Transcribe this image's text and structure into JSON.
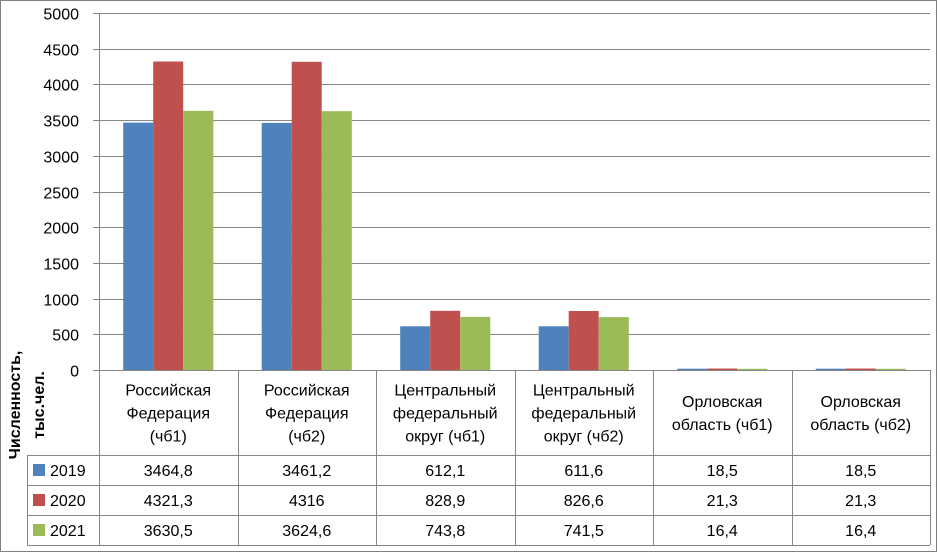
{
  "chart_data": {
    "type": "bar",
    "ylabel": "Численность, тыс.чел.",
    "ylim": [
      0,
      5000
    ],
    "yticks": [
      "0",
      "500",
      "1000",
      "1500",
      "2000",
      "2500",
      "3000",
      "3500",
      "4000",
      "4500",
      "5000"
    ],
    "grid": true,
    "legend": "data-table-left",
    "categories": [
      [
        "Российская",
        "Федерация",
        "(чб1)"
      ],
      [
        "Российская",
        "Федерация",
        "(чб2)"
      ],
      [
        "Центральный",
        "федеральный",
        "округ (чб1)"
      ],
      [
        "Центральный",
        "федеральный",
        "округ (чб2)"
      ],
      [
        "Орловская",
        "область (чб1)"
      ],
      [
        "Орловская",
        "область (чб2)"
      ]
    ],
    "series": [
      {
        "name": "2019",
        "color": "#4f81bd",
        "values": [
          3464.8,
          3461.2,
          612.1,
          611.6,
          18.5,
          18.5
        ],
        "labels": [
          "3464,8",
          "3461,2",
          "612,1",
          "611,6",
          "18,5",
          "18,5"
        ]
      },
      {
        "name": "2020",
        "color": "#c0504d",
        "values": [
          4321.3,
          4316,
          828.9,
          826.6,
          21.3,
          21.3
        ],
        "labels": [
          "4321,3",
          "4316",
          "828,9",
          "826,6",
          "21,3",
          "21,3"
        ]
      },
      {
        "name": "2021",
        "color": "#9bbb59",
        "values": [
          3630.5,
          3624.6,
          743.8,
          741.5,
          16.4,
          16.4
        ],
        "labels": [
          "3630,5",
          "3624,6",
          "743,8",
          "741,5",
          "16,4",
          "16,4"
        ]
      }
    ]
  }
}
